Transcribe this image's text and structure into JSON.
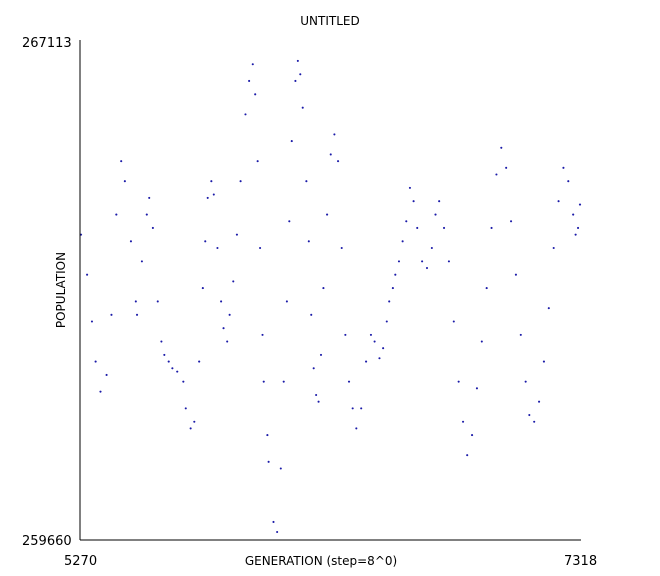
{
  "chart_data": {
    "type": "scatter",
    "title": "UNTITLED",
    "xlabel": "GENERATION (step=8^0)",
    "ylabel": "POPULATION",
    "xlim": [
      5270,
      7318
    ],
    "ylim": [
      259660,
      267113
    ],
    "x_tick_labels": [
      "5270",
      "7318"
    ],
    "y_tick_labels": [
      "267113",
      "259660"
    ],
    "grid": false,
    "legend": "none",
    "point_color": "#1a1aa8",
    "series": [
      {
        "x": [
          5270,
          5295,
          5315,
          5330,
          5350,
          5375,
          5395,
          5415,
          5435,
          5450,
          5475,
          5495,
          5500,
          5520,
          5540,
          5550,
          5565,
          5585,
          5600,
          5612,
          5630,
          5645,
          5665,
          5690,
          5700,
          5720,
          5735,
          5755,
          5770,
          5780,
          5790,
          5805,
          5815,
          5830,
          5845,
          5855,
          5870,
          5880,
          5895,
          5910,
          5925,
          5945,
          5960,
          5975,
          5985,
          5995,
          6005,
          6015,
          6020,
          6035,
          6040,
          6060,
          6075,
          6090,
          6102,
          6115,
          6125,
          6135,
          6150,
          6160,
          6170,
          6180,
          6195,
          6205,
          6215,
          6225,
          6235,
          6245,
          6255,
          6265,
          6280,
          6295,
          6310,
          6325,
          6340,
          6355,
          6370,
          6385,
          6400,
          6420,
          6440,
          6460,
          6475,
          6495,
          6510,
          6525,
          6535,
          6550,
          6560,
          6575,
          6590,
          6605,
          6620,
          6635,
          6650,
          6670,
          6690,
          6710,
          6725,
          6740,
          6760,
          6780,
          6800,
          6820,
          6838,
          6855,
          6875,
          6895,
          6915,
          6935,
          6955,
          6975,
          6995,
          7015,
          7035,
          7055,
          7075,
          7095,
          7110,
          7130,
          7150,
          7170,
          7190,
          7210,
          7230,
          7250,
          7270,
          7290,
          7300,
          7310,
          7318
        ],
        "y": [
          264200,
          263600,
          262900,
          262300,
          261850,
          262100,
          263000,
          264500,
          265300,
          265000,
          264100,
          263200,
          263000,
          263800,
          264500,
          264750,
          264300,
          263200,
          262600,
          262400,
          262300,
          262200,
          262150,
          262000,
          261600,
          261300,
          261400,
          262300,
          263400,
          264100,
          264750,
          265000,
          264800,
          264000,
          263200,
          262800,
          262600,
          263000,
          263500,
          264200,
          265000,
          266000,
          266500,
          266750,
          266300,
          265300,
          264000,
          262700,
          262000,
          261200,
          260800,
          259900,
          259750,
          260700,
          262000,
          263200,
          264400,
          265600,
          266500,
          266800,
          266600,
          266100,
          265000,
          264100,
          263000,
          262200,
          261800,
          261700,
          262400,
          263400,
          264500,
          265400,
          265700,
          265300,
          264000,
          262700,
          262000,
          261600,
          261300,
          261600,
          262300,
          262700,
          262600,
          262350,
          262500,
          262900,
          263200,
          263400,
          263600,
          263800,
          264100,
          264400,
          264900,
          264700,
          264300,
          263800,
          263700,
          264000,
          264500,
          264700,
          264300,
          263800,
          262900,
          262000,
          261400,
          260900,
          261200,
          261900,
          262600,
          263400,
          264300,
          265100,
          265500,
          265200,
          264400,
          263600,
          262700,
          262000,
          261500,
          261400,
          261700,
          262300,
          263100,
          264000,
          264700,
          265200,
          265000,
          264500,
          264200,
          264300,
          264650
        ]
      }
    ]
  }
}
